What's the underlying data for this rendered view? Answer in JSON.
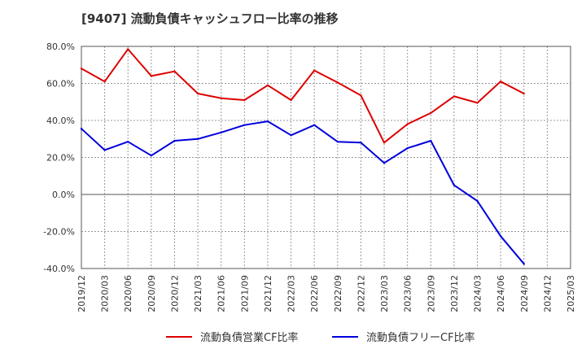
{
  "chart_data": {
    "type": "line",
    "title": "[9407]  流動負債キャッシュフロー比率の推移",
    "xlabel": "",
    "ylabel": "",
    "x": [
      "2019/12",
      "2020/03",
      "2020/06",
      "2020/09",
      "2020/12",
      "2021/03",
      "2021/06",
      "2021/09",
      "2021/12",
      "2022/03",
      "2022/06",
      "2022/09",
      "2022/12",
      "2023/03",
      "2023/06",
      "2023/09",
      "2023/12",
      "2024/03",
      "2024/06",
      "2024/09",
      "2024/12",
      "2025/03"
    ],
    "ylim": [
      -40,
      80
    ],
    "yticks": [
      -40,
      -20,
      0,
      20,
      40,
      60,
      80
    ],
    "ytick_labels": [
      "-40.0%",
      "-20.0%",
      "0.0%",
      "20.0%",
      "40.0%",
      "60.0%",
      "80.0%"
    ],
    "grid": true,
    "legend_position": "bottom",
    "series": [
      {
        "name": "流動負債営業CF比率",
        "color": "#dd0000",
        "values": [
          68.0,
          61.0,
          78.5,
          64.0,
          66.5,
          54.5,
          52.0,
          51.0,
          59.0,
          51.0,
          67.0,
          60.5,
          53.5,
          28.0,
          38.0,
          44.0,
          53.0,
          49.5,
          61.0,
          54.5,
          null,
          null
        ]
      },
      {
        "name": "流動負債フリーCF比率",
        "color": "#0000dd",
        "values": [
          35.5,
          24.0,
          28.5,
          21.0,
          29.0,
          30.0,
          33.5,
          37.5,
          39.5,
          32.0,
          37.5,
          28.5,
          28.0,
          17.0,
          25.0,
          29.0,
          5.0,
          -3.5,
          -22.5,
          -37.5,
          null,
          null
        ]
      }
    ]
  }
}
